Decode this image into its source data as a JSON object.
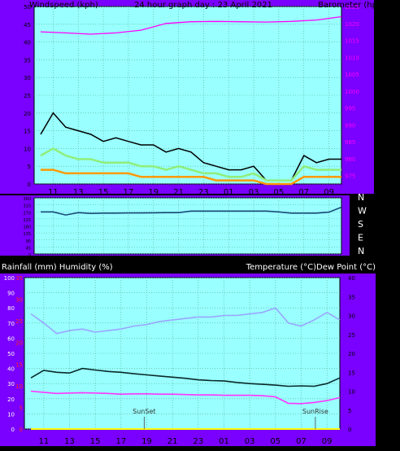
{
  "chart_data": [
    {
      "type": "line",
      "title": "24 hour graph day : 23 April 2021",
      "ylabel_left": "Windspeed (kph)",
      "ylabel_right": "Barometer (hpa)",
      "x_ticks": [
        "11",
        "13",
        "15",
        "17",
        "19",
        "21",
        "23",
        "01",
        "03",
        "05",
        "07",
        "09"
      ],
      "ylim_left": [
        0,
        50
      ],
      "left_ticks": [
        0,
        5,
        10,
        15,
        20,
        25,
        30,
        35,
        40,
        45,
        50
      ],
      "ylim_right": [
        972.5,
        1025
      ],
      "right_ticks": [
        975,
        980,
        985,
        990,
        995,
        1000,
        1005,
        1010,
        1015,
        1020,
        1025
      ],
      "grid": true,
      "series": [
        {
          "color": "#000000",
          "hours": [
            0,
            1,
            2,
            3,
            4,
            5,
            6,
            7,
            8,
            9,
            10,
            11,
            12,
            13,
            14,
            15,
            16,
            17,
            18,
            19,
            20,
            21,
            22,
            23,
            24
          ],
          "values": [
            14,
            20,
            16,
            15,
            14,
            12,
            13,
            12,
            11,
            11,
            9,
            10,
            9,
            6,
            5,
            4,
            4,
            5,
            1,
            1,
            1,
            8,
            6,
            7,
            7
          ]
        },
        {
          "color": "#90ee7a",
          "hours": [
            0,
            1,
            2,
            3,
            4,
            5,
            6,
            7,
            8,
            9,
            10,
            11,
            12,
            13,
            14,
            15,
            16,
            17,
            18,
            19,
            20,
            21,
            22,
            23,
            24
          ],
          "values": [
            8,
            10,
            8,
            7,
            7,
            6,
            6,
            6,
            5,
            5,
            4,
            5,
            4,
            3,
            3,
            2,
            2,
            3,
            1,
            1,
            1,
            5,
            4,
            4,
            4
          ]
        },
        {
          "color": "#ff9900",
          "hours": [
            0,
            1,
            2,
            3,
            4,
            5,
            6,
            7,
            8,
            9,
            10,
            11,
            12,
            13,
            14,
            15,
            16,
            17,
            18,
            19,
            20,
            21,
            22,
            23,
            24
          ],
          "values": [
            4,
            4,
            3,
            3,
            3,
            3,
            3,
            3,
            2,
            2,
            2,
            2,
            2,
            2,
            1,
            1,
            1,
            1,
            0,
            0,
            0,
            2,
            2,
            2,
            2
          ]
        },
        {
          "color": "#ff00ff",
          "axis": "right",
          "hours": [
            0,
            2,
            4,
            6,
            8,
            10,
            12,
            14,
            16,
            18,
            20,
            22,
            24
          ],
          "values": [
            1017.5,
            1017.2,
            1016.8,
            1017.2,
            1018.0,
            1020.0,
            1020.5,
            1020.6,
            1020.5,
            1020.4,
            1020.6,
            1021.0,
            1022.0
          ]
        }
      ]
    },
    {
      "type": "line",
      "title": "",
      "ylabel_right_ticks": [
        "N",
        "W",
        "S",
        "E",
        "N"
      ],
      "ylim": [
        0,
        360
      ],
      "left_ticks": [
        0,
        45,
        90,
        135,
        180,
        225,
        270,
        315,
        360
      ],
      "x_ticks": [
        "11",
        "13",
        "15",
        "17",
        "19",
        "21",
        "23",
        "01",
        "03",
        "05",
        "07",
        "09"
      ],
      "grid": true,
      "series": [
        {
          "color": "#1a4a7a",
          "name": "",
          "hours": [
            0,
            1,
            2,
            3,
            4,
            5,
            6,
            7,
            8,
            9,
            10,
            11,
            12,
            13,
            14,
            15,
            16,
            17,
            18,
            19,
            20,
            21,
            22,
            23,
            24
          ],
          "values": [
            270,
            270,
            250,
            265,
            260,
            262,
            262,
            263,
            263,
            264,
            265,
            265,
            275,
            275,
            275,
            275,
            275,
            275,
            275,
            270,
            262,
            262,
            262,
            268,
            300
          ]
        }
      ]
    },
    {
      "type": "line",
      "title": "",
      "ylabel_left": "Rainfall (mm)  Humidity (%)",
      "ylabel_right": "Temperature (°C)Dew Point (°C)",
      "x_ticks": [
        "11",
        "13",
        "15",
        "17",
        "19",
        "21",
        "23",
        "01",
        "03",
        "05",
        "07",
        "09"
      ],
      "ylim_left": [
        0,
        100
      ],
      "left_ticks": [
        0,
        10,
        20,
        30,
        40,
        50,
        60,
        70,
        80,
        90,
        100
      ],
      "ylim_rain": [
        0,
        35
      ],
      "rain_ticks": [
        0,
        5,
        10,
        15,
        20,
        25,
        30,
        35
      ],
      "ylim_right": [
        0,
        40
      ],
      "right_ticks": [
        0,
        5,
        10,
        15,
        20,
        25,
        30,
        35,
        40
      ],
      "annotations": [
        {
          "text": "SunSet",
          "hour": 8.8
        },
        {
          "text": "SunRise",
          "hour": 22.1
        }
      ],
      "grid": true,
      "series": [
        {
          "color": "#9aa6ff",
          "name": "",
          "axis": "left",
          "hours": [
            0,
            1,
            2,
            3,
            4,
            5,
            6,
            7,
            8,
            9,
            10,
            11,
            12,
            13,
            14,
            15,
            16,
            17,
            18,
            19,
            20,
            21,
            22,
            23,
            24
          ],
          "values": [
            76,
            70,
            63,
            65,
            66,
            64,
            65,
            66,
            68,
            69,
            71,
            72,
            73,
            74,
            74,
            75,
            75,
            76,
            77,
            80,
            70,
            68,
            72,
            77,
            72
          ]
        },
        {
          "color": "#0a2a2a",
          "name": "",
          "axis": "right",
          "hours": [
            0,
            1,
            2,
            3,
            4,
            5,
            6,
            7,
            8,
            9,
            10,
            11,
            12,
            13,
            14,
            15,
            16,
            17,
            18,
            19,
            20,
            21,
            22,
            23,
            24
          ],
          "values": [
            13.5,
            15.5,
            15,
            14.8,
            16,
            15.6,
            15.2,
            15,
            14.6,
            14.3,
            14,
            13.7,
            13.4,
            13,
            12.8,
            12.7,
            12.3,
            12,
            11.8,
            11.6,
            11.3,
            11.4,
            11.3,
            12,
            13.5
          ]
        },
        {
          "color": "#ff33ff",
          "name": "",
          "axis": "right",
          "hours": [
            0,
            1,
            2,
            3,
            4,
            5,
            6,
            7,
            8,
            9,
            10,
            11,
            12,
            13,
            14,
            15,
            16,
            17,
            18,
            19,
            20,
            21,
            22,
            23,
            24
          ],
          "values": [
            10,
            9.7,
            9.4,
            9.5,
            9.6,
            9.5,
            9.4,
            9.2,
            9.3,
            9.3,
            9.2,
            9.2,
            9.1,
            9,
            9,
            8.9,
            8.9,
            8.9,
            8.8,
            8.5,
            6.8,
            6.7,
            7,
            7.5,
            8.3
          ]
        },
        {
          "color": "#ffff00",
          "name": "",
          "axis": "rain",
          "hours": [
            0,
            24
          ],
          "values": [
            0,
            0
          ]
        }
      ]
    }
  ]
}
